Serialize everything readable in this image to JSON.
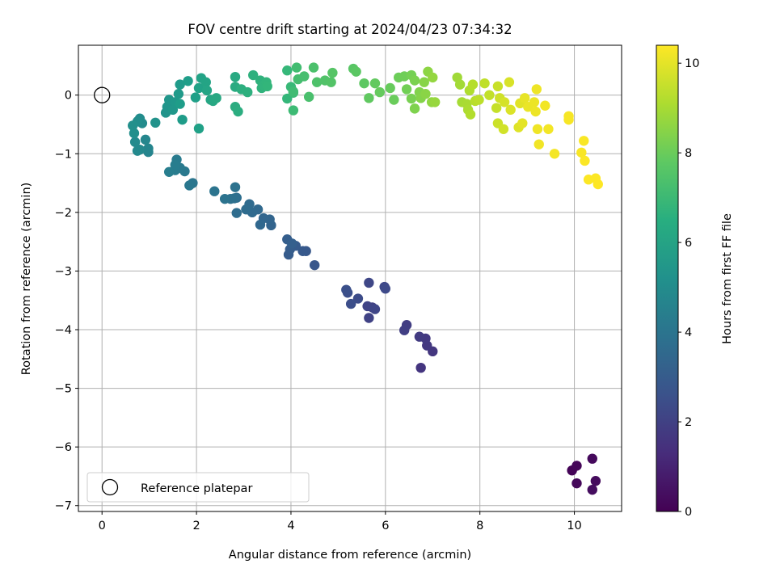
{
  "chart_data": {
    "type": "scatter",
    "title": "FOV centre drift starting at 2024/04/23 07:34:32",
    "xlabel": "Angular distance from reference (arcmin)",
    "ylabel": "Rotation from reference (arcmin)",
    "xlim": [
      -0.5,
      11.0
    ],
    "ylim": [
      -7.1,
      0.85
    ],
    "xticks": [
      0,
      2,
      4,
      6,
      8,
      10
    ],
    "yticks": [
      0,
      -1,
      -2,
      -3,
      -4,
      -5,
      -6,
      -7
    ],
    "grid": true,
    "legend": {
      "position": "lower-left",
      "entries": [
        "Reference platepar"
      ]
    },
    "colorbar": {
      "label": "Hours from first FF file",
      "min": 0,
      "max": 10.4,
      "ticks": [
        0,
        2,
        4,
        6,
        8,
        10
      ],
      "colormap": "viridis"
    },
    "reference_point": {
      "x": 0,
      "y": 0
    },
    "series": [
      {
        "points": [
          [
            9.95,
            -6.4,
            0.1
          ],
          [
            10.05,
            -6.32,
            0.15
          ],
          [
            10.05,
            -6.62,
            0.2
          ],
          [
            10.38,
            -6.2,
            0.25
          ],
          [
            10.45,
            -6.58,
            0.3
          ],
          [
            10.38,
            -6.73,
            0.35
          ],
          [
            6.75,
            -4.65,
            1.6
          ],
          [
            7.0,
            -4.37,
            1.65
          ],
          [
            6.88,
            -4.27,
            1.7
          ],
          [
            6.85,
            -4.15,
            1.75
          ],
          [
            6.72,
            -4.12,
            1.8
          ],
          [
            6.45,
            -3.92,
            1.9
          ],
          [
            6.4,
            -4.01,
            1.95
          ],
          [
            5.72,
            -3.62,
            2.0
          ],
          [
            5.65,
            -3.8,
            2.05
          ],
          [
            5.62,
            -3.6,
            2.1
          ],
          [
            5.78,
            -3.65,
            2.15
          ],
          [
            5.65,
            -3.2,
            2.2
          ],
          [
            5.98,
            -3.27,
            2.25
          ],
          [
            6.0,
            -3.3,
            2.3
          ],
          [
            5.42,
            -3.47,
            2.4
          ],
          [
            5.27,
            -3.56,
            2.45
          ],
          [
            5.2,
            -3.37,
            2.5
          ],
          [
            5.17,
            -3.32,
            2.55
          ],
          [
            4.5,
            -2.9,
            2.8
          ],
          [
            4.32,
            -2.66,
            2.85
          ],
          [
            4.25,
            -2.66,
            2.9
          ],
          [
            4.1,
            -2.57,
            2.95
          ],
          [
            3.95,
            -2.72,
            3.0
          ],
          [
            3.98,
            -2.63,
            3.05
          ],
          [
            3.92,
            -2.46,
            3.1
          ],
          [
            4.02,
            -2.53,
            3.15
          ],
          [
            3.58,
            -2.22,
            3.3
          ],
          [
            3.55,
            -2.12,
            3.35
          ],
          [
            3.42,
            -2.1,
            3.4
          ],
          [
            3.35,
            -2.21,
            3.45
          ],
          [
            3.3,
            -1.95,
            3.5
          ],
          [
            3.18,
            -2.0,
            3.55
          ],
          [
            3.12,
            -1.86,
            3.6
          ],
          [
            3.05,
            -1.95,
            3.65
          ],
          [
            2.85,
            -2.01,
            3.7
          ],
          [
            2.85,
            -1.75,
            3.75
          ],
          [
            2.8,
            -1.76,
            3.8
          ],
          [
            2.72,
            -1.77,
            3.85
          ],
          [
            2.82,
            -1.57,
            3.9
          ],
          [
            2.6,
            -1.77,
            3.95
          ],
          [
            2.38,
            -1.64,
            4.0
          ],
          [
            1.92,
            -1.5,
            4.1
          ],
          [
            1.85,
            -1.54,
            4.15
          ],
          [
            1.75,
            -1.3,
            4.2
          ],
          [
            1.65,
            -1.24,
            4.25
          ],
          [
            1.58,
            -1.1,
            4.3
          ],
          [
            1.55,
            -1.28,
            4.35
          ],
          [
            1.55,
            -1.19,
            4.4
          ],
          [
            1.42,
            -1.31,
            4.45
          ],
          [
            0.98,
            -0.97,
            4.7
          ],
          [
            0.98,
            -0.91,
            4.75
          ],
          [
            0.92,
            -0.76,
            4.8
          ],
          [
            0.8,
            -0.93,
            4.85
          ],
          [
            0.75,
            -0.95,
            4.9
          ],
          [
            0.7,
            -0.8,
            4.95
          ],
          [
            0.85,
            -0.48,
            5.0
          ],
          [
            0.8,
            -0.4,
            5.05
          ],
          [
            0.75,
            -0.45,
            5.1
          ],
          [
            0.68,
            -0.65,
            5.15
          ],
          [
            0.65,
            -0.52,
            5.2
          ],
          [
            1.13,
            -0.47,
            5.3
          ],
          [
            1.35,
            -0.3,
            5.35
          ],
          [
            1.38,
            -0.2,
            5.4
          ],
          [
            1.42,
            -0.08,
            5.45
          ],
          [
            1.5,
            -0.25,
            5.5
          ],
          [
            1.55,
            -0.12,
            5.55
          ],
          [
            1.62,
            0.02,
            5.6
          ],
          [
            1.65,
            0.18,
            5.65
          ],
          [
            1.7,
            -0.42,
            5.7
          ],
          [
            1.65,
            -0.15,
            5.75
          ],
          [
            1.82,
            0.24,
            5.8
          ],
          [
            1.98,
            -0.04,
            5.85
          ],
          [
            2.05,
            -0.57,
            5.9
          ],
          [
            2.05,
            0.12,
            5.95
          ],
          [
            2.1,
            0.29,
            6.0
          ],
          [
            2.2,
            0.22,
            6.05
          ],
          [
            2.22,
            0.08,
            6.1
          ],
          [
            2.3,
            -0.08,
            6.15
          ],
          [
            2.35,
            -0.1,
            6.2
          ],
          [
            2.42,
            -0.05,
            6.25
          ],
          [
            2.82,
            0.31,
            6.3
          ],
          [
            2.82,
            0.14,
            6.35
          ],
          [
            2.82,
            -0.2,
            6.4
          ],
          [
            2.88,
            -0.28,
            6.45
          ],
          [
            2.95,
            0.1,
            6.5
          ],
          [
            3.08,
            0.05,
            6.55
          ],
          [
            3.2,
            0.34,
            6.6
          ],
          [
            3.35,
            0.25,
            6.65
          ],
          [
            3.38,
            0.12,
            6.7
          ],
          [
            3.42,
            0.17,
            6.75
          ],
          [
            3.48,
            0.22,
            6.8
          ],
          [
            3.5,
            0.15,
            6.85
          ],
          [
            3.92,
            -0.06,
            6.9
          ],
          [
            3.92,
            0.42,
            6.95
          ],
          [
            4.0,
            0.14,
            7.0
          ],
          [
            4.05,
            0.04,
            7.05
          ],
          [
            4.05,
            -0.26,
            7.1
          ],
          [
            4.05,
            0.06,
            7.15
          ],
          [
            4.12,
            0.47,
            7.2
          ],
          [
            4.15,
            0.27,
            7.25
          ],
          [
            4.28,
            0.32,
            7.3
          ],
          [
            4.38,
            -0.03,
            7.35
          ],
          [
            4.48,
            0.47,
            7.4
          ],
          [
            4.55,
            0.22,
            7.45
          ],
          [
            4.72,
            0.25,
            7.5
          ],
          [
            4.85,
            0.22,
            7.55
          ],
          [
            4.88,
            0.38,
            7.6
          ],
          [
            5.32,
            0.45,
            7.65
          ],
          [
            5.38,
            0.4,
            7.7
          ],
          [
            5.55,
            0.2,
            7.75
          ],
          [
            5.65,
            -0.05,
            7.8
          ],
          [
            5.78,
            0.2,
            7.85
          ],
          [
            5.88,
            0.05,
            7.9
          ],
          [
            6.1,
            0.12,
            7.95
          ],
          [
            6.18,
            -0.08,
            8.0
          ],
          [
            6.28,
            0.3,
            8.05
          ],
          [
            6.4,
            0.32,
            8.1
          ],
          [
            6.45,
            0.1,
            8.15
          ],
          [
            6.55,
            0.34,
            8.2
          ],
          [
            6.55,
            -0.06,
            8.25
          ],
          [
            6.62,
            0.25,
            8.3
          ],
          [
            6.62,
            -0.23,
            8.35
          ],
          [
            6.72,
            0.05,
            8.4
          ],
          [
            6.75,
            -0.05,
            8.45
          ],
          [
            6.82,
            0.22,
            8.5
          ],
          [
            6.85,
            0.02,
            8.55
          ],
          [
            6.9,
            0.4,
            8.6
          ],
          [
            6.98,
            -0.12,
            8.65
          ],
          [
            7.0,
            0.3,
            8.7
          ],
          [
            7.05,
            -0.12,
            8.75
          ],
          [
            7.52,
            0.3,
            8.9
          ],
          [
            7.58,
            0.18,
            8.95
          ],
          [
            7.62,
            -0.12,
            9.0
          ],
          [
            7.72,
            -0.15,
            9.05
          ],
          [
            7.75,
            -0.25,
            9.1
          ],
          [
            7.78,
            0.08,
            9.15
          ],
          [
            7.8,
            -0.33,
            9.2
          ],
          [
            7.85,
            0.18,
            9.25
          ],
          [
            7.9,
            -0.1,
            9.3
          ],
          [
            7.98,
            -0.08,
            9.35
          ],
          [
            8.1,
            0.2,
            9.4
          ],
          [
            8.2,
            0.0,
            9.45
          ],
          [
            8.35,
            -0.22,
            9.5
          ],
          [
            8.38,
            0.15,
            9.55
          ],
          [
            8.38,
            -0.48,
            9.6
          ],
          [
            8.42,
            -0.05,
            9.65
          ],
          [
            8.5,
            -0.58,
            9.7
          ],
          [
            8.52,
            -0.12,
            9.75
          ],
          [
            8.62,
            0.22,
            9.8
          ],
          [
            8.65,
            -0.25,
            9.85
          ],
          [
            8.82,
            -0.55,
            9.9
          ],
          [
            8.85,
            -0.14,
            9.95
          ],
          [
            8.9,
            -0.48,
            10.0
          ],
          [
            8.95,
            -0.05,
            10.05
          ],
          [
            9.02,
            -0.2,
            10.1
          ],
          [
            9.15,
            -0.12,
            10.12
          ],
          [
            9.18,
            -0.28,
            10.14
          ],
          [
            9.2,
            0.1,
            10.16
          ],
          [
            9.22,
            -0.58,
            10.18
          ],
          [
            9.25,
            -0.84,
            10.2
          ],
          [
            9.38,
            -0.18,
            10.22
          ],
          [
            9.45,
            -0.58,
            10.24
          ],
          [
            9.58,
            -1.0,
            10.26
          ],
          [
            9.88,
            -0.36,
            10.28
          ],
          [
            9.88,
            -0.42,
            10.3
          ],
          [
            10.15,
            -0.98,
            10.32
          ],
          [
            10.2,
            -0.78,
            10.34
          ],
          [
            10.22,
            -1.12,
            10.36
          ],
          [
            10.3,
            -1.44,
            10.38
          ],
          [
            10.45,
            -1.42,
            10.39
          ],
          [
            10.5,
            -1.52,
            10.4
          ]
        ]
      }
    ]
  }
}
